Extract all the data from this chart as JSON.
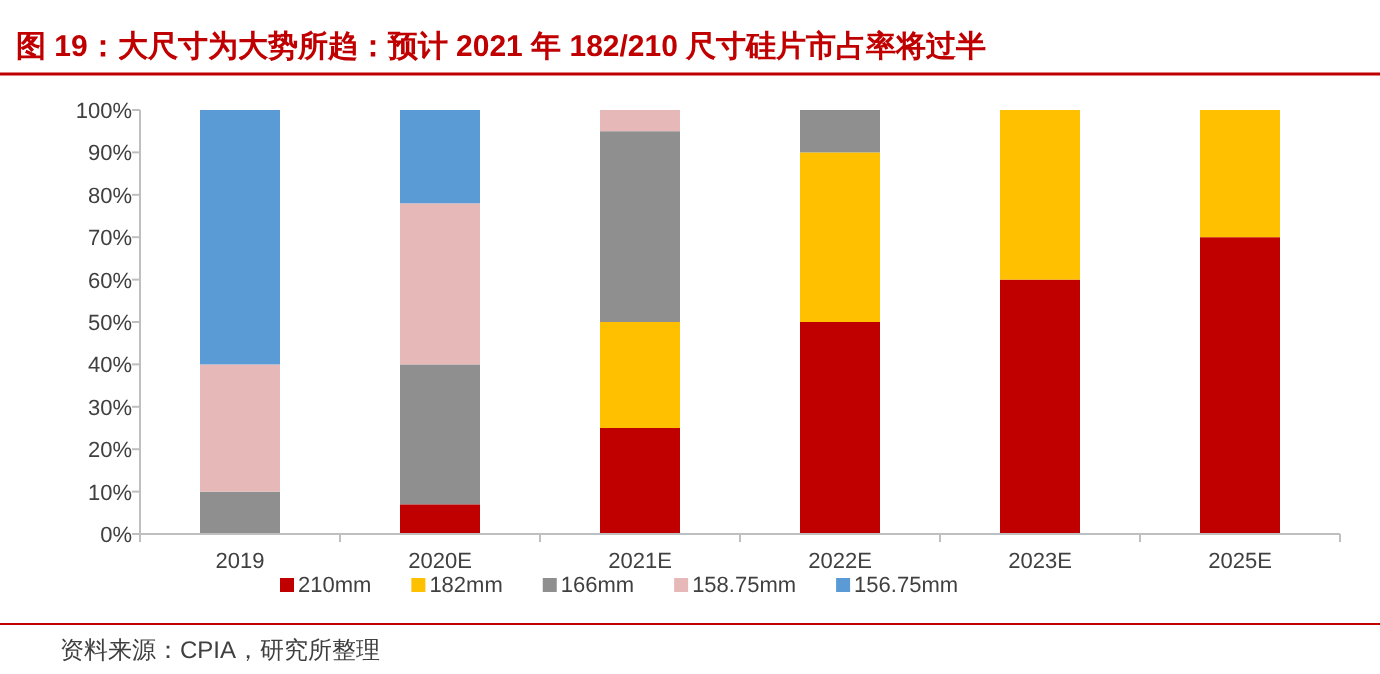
{
  "chart_data": {
    "type": "bar",
    "title": "图 19：大尺寸为大势所趋：预计 2021 年 182/210 尺寸硅片市占率将过半",
    "annotations": [
      "资料来源：CPIA，研究所整理"
    ],
    "categories": [
      "2019",
      "2020E",
      "2021E",
      "2022E",
      "2023E",
      "2025E"
    ],
    "stacked": true,
    "series": [
      {
        "name": "210mm",
        "color": "#c00000",
        "values": [
          0,
          7,
          25,
          50,
          60,
          70
        ]
      },
      {
        "name": "182mm",
        "color": "#ffc000",
        "values": [
          0,
          0,
          25,
          40,
          40,
          30
        ]
      },
      {
        "name": "166mm",
        "color": "#8f8f8f",
        "values": [
          10,
          33,
          45,
          10,
          0,
          0
        ]
      },
      {
        "name": "158.75mm",
        "color": "#e6b9b8",
        "values": [
          30,
          38,
          5,
          0,
          0,
          0
        ]
      },
      {
        "name": "156.75mm",
        "color": "#5b9bd5",
        "values": [
          60,
          22,
          0,
          0,
          0,
          0
        ]
      }
    ],
    "ylim": [
      0,
      100
    ],
    "yticks": [
      {
        "value": 0,
        "label": "0%"
      },
      {
        "value": 10,
        "label": "10%"
      },
      {
        "value": 20,
        "label": "20%"
      },
      {
        "value": 30,
        "label": "30%"
      },
      {
        "value": 40,
        "label": "40%"
      },
      {
        "value": 50,
        "label": "50%"
      },
      {
        "value": 60,
        "label": "60%"
      },
      {
        "value": 70,
        "label": "70%"
      },
      {
        "value": 80,
        "label": "80%"
      },
      {
        "value": 90,
        "label": "90%"
      },
      {
        "value": 100,
        "label": "100%"
      }
    ],
    "legend": "bottom"
  }
}
